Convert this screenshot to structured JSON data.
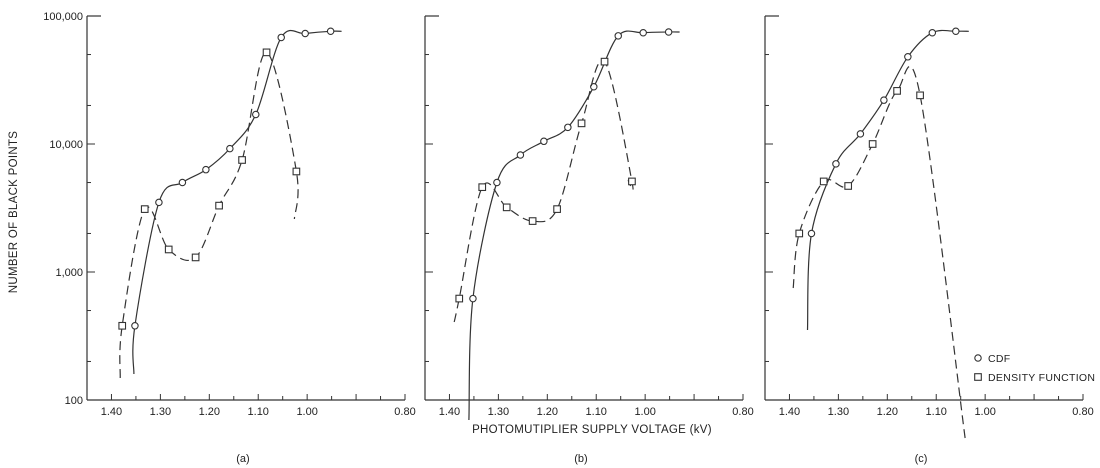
{
  "chart_data": {
    "type": "line",
    "panels": [
      {
        "label": "(a)",
        "xticks": [
          "1.40",
          "1.30",
          "1.20",
          "1.10",
          "1.00",
          "0.80"
        ],
        "series": [
          {
            "name": "CDF",
            "marker": "circle",
            "linestyle": "solid",
            "x": [
              1.352,
              1.303,
              1.255,
              1.207,
              1.158,
              1.105,
              1.053,
              1.004,
              0.952
            ],
            "y": [
              380,
              3500,
              5000,
              6300,
              9200,
              17000,
              68000,
              73000,
              76000
            ]
          },
          {
            "name": "DENSITY FUNCTION",
            "marker": "square",
            "linestyle": "dashed",
            "x": [
              1.378,
              1.332,
              1.283,
              1.228,
              1.18,
              1.133,
              1.083,
              1.022
            ],
            "y": [
              380,
              3100,
              1500,
              1300,
              3300,
              7500,
              52000,
              6100
            ]
          }
        ]
      },
      {
        "label": "(b)",
        "xticks": [
          "1.40",
          "1.30",
          "1.20",
          "1.10",
          "1.00",
          "0.80"
        ],
        "series": [
          {
            "name": "CDF",
            "marker": "circle",
            "linestyle": "solid",
            "x": [
              1.352,
              1.303,
              1.255,
              1.207,
              1.158,
              1.105,
              1.055,
              1.004,
              0.952
            ],
            "y": [
              620,
              5000,
              8200,
              10500,
              13500,
              28000,
              70000,
              74000,
              75000
            ]
          },
          {
            "name": "DENSITY FUNCTION",
            "marker": "square",
            "linestyle": "dashed",
            "x": [
              1.38,
              1.333,
              1.283,
              1.23,
              1.18,
              1.13,
              1.083,
              1.027
            ],
            "y": [
              620,
              4600,
              3200,
              2500,
              3100,
              14500,
              44000,
              5100
            ]
          }
        ]
      },
      {
        "label": "(c)",
        "xticks": [
          "1.40",
          "1.30",
          "1.20",
          "1.10",
          "1.00",
          "0.80"
        ],
        "series": [
          {
            "name": "CDF",
            "marker": "circle",
            "linestyle": "solid",
            "x": [
              1.355,
              1.305,
              1.255,
              1.207,
              1.158,
              1.108,
              1.06
            ],
            "y": [
              2000,
              7000,
              12000,
              22000,
              48000,
              74000,
              76000
            ]
          },
          {
            "name": "DENSITY FUNCTION",
            "marker": "square",
            "linestyle": "dashed",
            "x": [
              1.38,
              1.33,
              1.28,
              1.23,
              1.18,
              1.133
            ],
            "y": [
              2000,
              5100,
              4700,
              10000,
              26000,
              24000
            ]
          }
        ]
      }
    ],
    "yscale": "log",
    "ylim": [
      100,
      100000
    ],
    "yticks": [
      "100",
      "1,000",
      "10,000",
      "100,000"
    ],
    "xlim": [
      1.45,
      0.8
    ],
    "xlabel": "PHOTOMUTIPLIER SUPPLY VOLTAGE (kV)",
    "ylabel": "NUMBER OF BLACK POINTS",
    "legend": {
      "position": "bottom-right of panel (c)",
      "entries": [
        "CDF",
        "DENSITY FUNCTION"
      ]
    },
    "grid": false
  }
}
